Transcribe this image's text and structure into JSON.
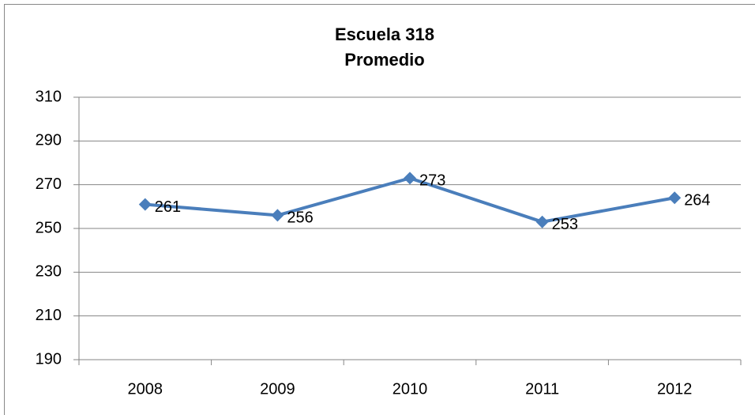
{
  "chart_data": {
    "type": "line",
    "title": "Escuela 318",
    "subtitle": "Promedio",
    "categories": [
      "2008",
      "2009",
      "2010",
      "2011",
      "2012"
    ],
    "values": [
      261,
      256,
      273,
      253,
      264
    ],
    "color": "#4a7ebb",
    "ylim": [
      190,
      310
    ],
    "yticks": [
      190,
      210,
      230,
      250,
      270,
      290,
      310
    ],
    "grid": true
  }
}
